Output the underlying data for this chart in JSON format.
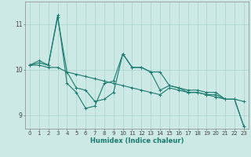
{
  "xlabel": "Humidex (Indice chaleur)",
  "ylabel": "",
  "xlim": [
    -0.5,
    23.5
  ],
  "ylim": [
    8.7,
    11.5
  ],
  "yticks": [
    9,
    10,
    11
  ],
  "xticks": [
    0,
    1,
    2,
    3,
    4,
    5,
    6,
    7,
    8,
    9,
    10,
    11,
    12,
    13,
    14,
    15,
    16,
    17,
    18,
    19,
    20,
    21,
    22,
    23
  ],
  "bg_color": "#cce9e5",
  "grid_color": "#aad4cf",
  "line_color": "#1a7a6e",
  "lines": [
    [
      10.1,
      10.2,
      10.1,
      11.2,
      9.7,
      9.5,
      9.15,
      9.2,
      9.7,
      9.75,
      10.35,
      10.05,
      10.05,
      9.95,
      9.55,
      9.65,
      9.6,
      9.55,
      9.55,
      9.5,
      9.5,
      9.35,
      9.35,
      8.75
    ],
    [
      10.1,
      10.1,
      10.05,
      10.05,
      9.95,
      9.9,
      9.85,
      9.8,
      9.75,
      9.7,
      9.65,
      9.6,
      9.55,
      9.5,
      9.45,
      9.6,
      9.55,
      9.5,
      9.5,
      9.45,
      9.4,
      9.35,
      9.35,
      9.3
    ],
    [
      10.1,
      10.15,
      10.1,
      11.15,
      9.95,
      9.6,
      9.55,
      9.3,
      9.35,
      9.5,
      10.35,
      10.05,
      10.05,
      9.95,
      9.95,
      9.65,
      9.6,
      9.5,
      9.5,
      9.45,
      9.45,
      9.35,
      9.35,
      8.75
    ]
  ],
  "tick_fontsize": 5.0,
  "xlabel_fontsize": 6.0,
  "fig_width": 3.2,
  "fig_height": 2.0,
  "dpi": 100
}
